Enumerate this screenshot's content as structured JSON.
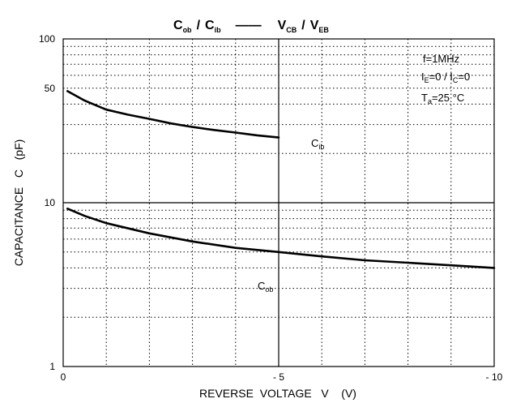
{
  "chart_data": {
    "type": "line",
    "title_parts": {
      "left_main1": "C",
      "left_sub1": "ob",
      "left_sep": "/",
      "left_main2": "C",
      "left_sub2": "ib",
      "dash": "——",
      "right_main1": "V",
      "right_sub1": "CB",
      "right_sep": "/",
      "right_main2": "V",
      "right_sub2": "EB"
    },
    "xlabel": "REVERSE  VOLTAGE   V    (V)",
    "ylabel": "CAPACITANCE   C   (pF)",
    "xlim": [
      0,
      10
    ],
    "ylim": [
      1,
      100
    ],
    "y_scale": "log",
    "x_tick_labels": [
      {
        "value": 0,
        "label": "0"
      },
      {
        "value": 5,
        "label": "- 5"
      },
      {
        "value": 10,
        "label": "- 10"
      }
    ],
    "y_tick_labels": [
      {
        "value": 1,
        "label": "1"
      },
      {
        "value": 10,
        "label": "10"
      },
      {
        "value": 50,
        "label": "50"
      },
      {
        "value": 100,
        "label": "100"
      }
    ],
    "grid": true,
    "series": [
      {
        "name": "Cib",
        "color": "#000000",
        "x": [
          0.1,
          0.5,
          1,
          1.5,
          2,
          2.5,
          3,
          3.5,
          4,
          4.5,
          5
        ],
        "y": [
          48,
          42,
          37,
          34.5,
          32.5,
          30.5,
          29,
          27.8,
          26.8,
          25.8,
          25
        ]
      },
      {
        "name": "Cob",
        "color": "#000000",
        "x": [
          0.1,
          0.5,
          1,
          2,
          3,
          4,
          5,
          6,
          7,
          8,
          9,
          10
        ],
        "y": [
          9.2,
          8.3,
          7.5,
          6.5,
          5.8,
          5.3,
          5.0,
          4.7,
          4.45,
          4.3,
          4.15,
          4.0
        ]
      }
    ],
    "annotations": {
      "condition_freq": "f=1MHz",
      "condition_current": {
        "i1": "I",
        "s1": "E",
        "mid": "=0 / I",
        "s2": "C",
        "end": "=0"
      },
      "condition_temp": {
        "t": "T",
        "s": "a",
        "rest": "=25 °C"
      },
      "label_cib": {
        "main": "C",
        "sub": "ib"
      },
      "label_cob": {
        "main": "C",
        "sub": "ob"
      }
    }
  }
}
